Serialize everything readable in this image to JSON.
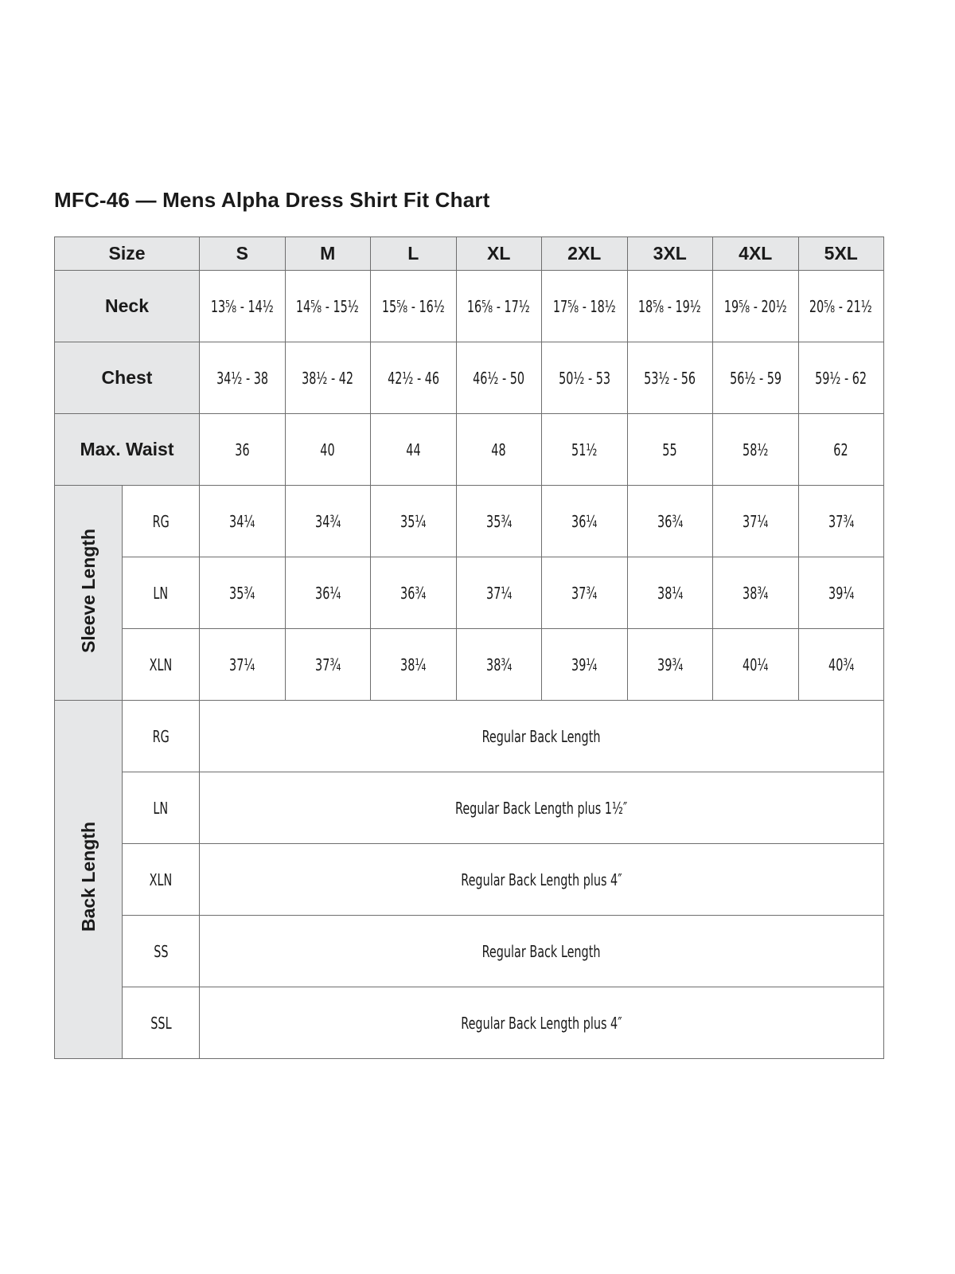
{
  "title": "MFC-46 — Mens Alpha Dress Shirt Fit Chart",
  "header": {
    "label": "Size",
    "sizes": [
      "S",
      "M",
      "L",
      "XL",
      "2XL",
      "3XL",
      "4XL",
      "5XL"
    ]
  },
  "neck": {
    "label": "Neck",
    "values": [
      "13⅝ - 14½",
      "14⅝ - 15½",
      "15⅝ - 16½",
      "16⅝ - 17½",
      "17⅝ - 18½",
      "18⅝ - 19½",
      "19⅝ - 20½",
      "20⅝ - 21½"
    ]
  },
  "chest": {
    "label": "Chest",
    "values": [
      "34½ - 38",
      "38½ - 42",
      "42½ - 46",
      "46½ - 50",
      "50½ - 53",
      "53½ - 56",
      "56½ - 59",
      "59½ - 62"
    ]
  },
  "waist": {
    "label": "Max. Waist",
    "values": [
      "36",
      "40",
      "44",
      "48",
      "51½",
      "55",
      "58½",
      "62"
    ]
  },
  "sleeve": {
    "label": "Sleeve Length",
    "rows": [
      {
        "label": "RG",
        "values": [
          "34¼",
          "34¾",
          "35¼",
          "35¾",
          "36¼",
          "36¾",
          "37¼",
          "37¾"
        ]
      },
      {
        "label": "LN",
        "values": [
          "35¾",
          "36¼",
          "36¾",
          "37¼",
          "37¾",
          "38¼",
          "38¾",
          "39¼"
        ]
      },
      {
        "label": "XLN",
        "values": [
          "37¼",
          "37¾",
          "38¼",
          "38¾",
          "39¼",
          "39¾",
          "40¼",
          "40¾"
        ]
      }
    ]
  },
  "back": {
    "label": "Back Length",
    "rows": [
      {
        "label": "RG",
        "value": "Regular Back Length"
      },
      {
        "label": "LN",
        "value": "Regular Back Length plus 1½″"
      },
      {
        "label": "XLN",
        "value": "Regular Back Length plus 4″"
      },
      {
        "label": "SS",
        "value": "Regular Back Length"
      },
      {
        "label": "SSL",
        "value": "Regular Back Length plus 4″"
      }
    ]
  },
  "colors": {
    "header_bg": "#e6e7e8",
    "border": "#6e6e6e"
  }
}
